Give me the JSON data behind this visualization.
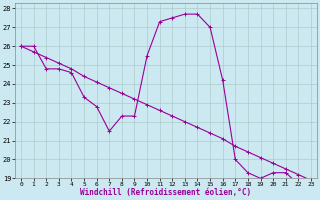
{
  "x": [
    0,
    1,
    2,
    3,
    4,
    5,
    6,
    7,
    8,
    9,
    10,
    11,
    12,
    13,
    14,
    15,
    16,
    17,
    18,
    19,
    20,
    21,
    22,
    23
  ],
  "y_curve": [
    26.0,
    26.0,
    24.8,
    24.8,
    24.6,
    23.3,
    22.8,
    21.5,
    22.3,
    22.3,
    25.5,
    27.3,
    27.5,
    27.7,
    27.7,
    27.0,
    24.2,
    20.0,
    19.3,
    19.0,
    19.3,
    19.3,
    18.7,
    18.7
  ],
  "y_line": [
    26.0,
    25.7,
    25.4,
    25.1,
    24.8,
    24.4,
    24.1,
    23.8,
    23.5,
    23.2,
    22.9,
    22.6,
    22.3,
    22.0,
    21.7,
    21.4,
    21.1,
    20.7,
    20.4,
    20.1,
    19.8,
    19.5,
    19.2,
    18.9
  ],
  "line_color": "#990099",
  "bg_color": "#cce8f0",
  "grid_color": "#aacccc",
  "xlabel": "Windchill (Refroidissement éolien,°C)",
  "ylim": [
    19,
    28
  ],
  "xlim": [
    -0.5,
    23.5
  ],
  "yticks": [
    19,
    20,
    21,
    22,
    23,
    24,
    25,
    26,
    27,
    28
  ],
  "xticks": [
    0,
    1,
    2,
    3,
    4,
    5,
    6,
    7,
    8,
    9,
    10,
    11,
    12,
    13,
    14,
    15,
    16,
    17,
    18,
    19,
    20,
    21,
    22,
    23
  ]
}
